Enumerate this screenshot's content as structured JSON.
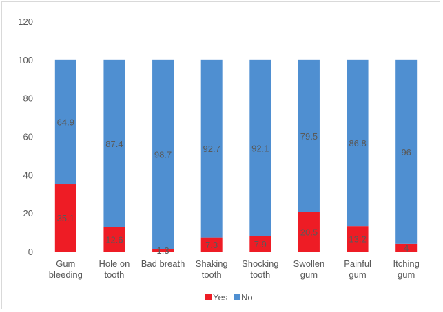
{
  "chart_data": {
    "type": "bar",
    "stacked": true,
    "categories": [
      [
        "Gum",
        "bleeding"
      ],
      [
        "Hole on",
        "tooth"
      ],
      [
        "Bad breath"
      ],
      [
        "Shaking",
        "tooth"
      ],
      [
        "Shocking",
        "tooth"
      ],
      [
        "Swollen",
        "gum"
      ],
      [
        "Painful",
        "gum"
      ],
      [
        "Itching",
        "gum"
      ]
    ],
    "series": [
      {
        "name": "Yes",
        "color": "#ee1c25",
        "values": [
          35.1,
          12.6,
          1.3,
          7.3,
          7.9,
          20.5,
          13.2,
          4
        ],
        "labels": [
          "35.1",
          "12.6",
          "1.3",
          "7.3",
          "7.9",
          "20.5",
          "13.2",
          "4"
        ]
      },
      {
        "name": "No",
        "color": "#4f8fd1",
        "values": [
          64.9,
          87.4,
          98.7,
          92.7,
          92.1,
          79.5,
          86.8,
          96
        ],
        "labels": [
          "64.9",
          "87.4",
          "98.7",
          "92.7",
          "92.1",
          "79.5",
          "86.8",
          "96"
        ]
      }
    ],
    "ylim": [
      0,
      120
    ],
    "yticks": [
      "0",
      "20",
      "40",
      "60",
      "80",
      "100",
      "120"
    ],
    "grid": false,
    "legend": "bottom"
  }
}
